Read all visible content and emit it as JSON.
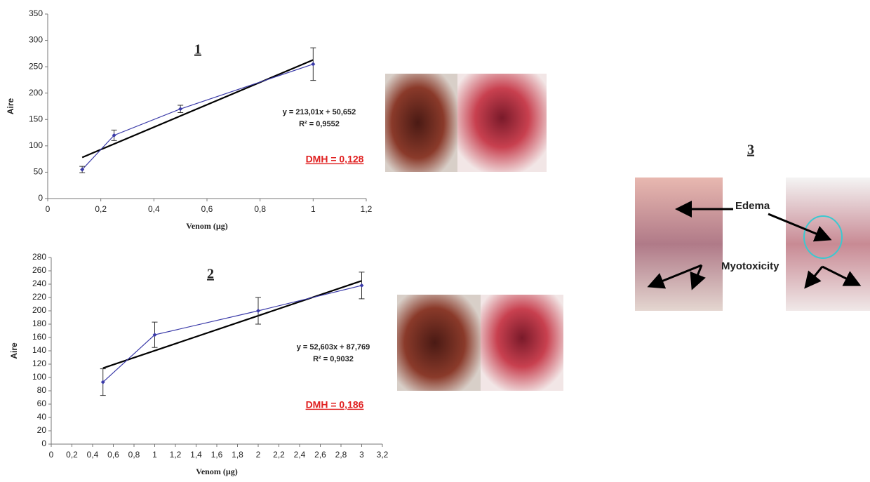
{
  "chart_data": [
    {
      "type": "line",
      "panel_label": "1",
      "xlabel": "Venom (µg)",
      "ylabel": "Aire",
      "x": [
        0.13,
        0.25,
        0.5,
        1
      ],
      "series": [
        {
          "color": "#3a3aa8",
          "values": [
            55,
            120,
            170,
            255
          ],
          "errors": [
            6,
            10,
            7,
            31
          ]
        }
      ],
      "trendline": {
        "color": "#000000",
        "x": [
          0.13,
          1
        ],
        "values": [
          78,
          263
        ]
      },
      "equation": "y = 213,01x + 50,652",
      "r_squared": "R² = 0,9552",
      "dmh": "DMH = 0,128",
      "xlim": [
        0,
        1.2
      ],
      "ylim": [
        0,
        350
      ],
      "xticks": [
        0,
        {
          "value": 0.2,
          "label": "0,2"
        },
        {
          "value": 0.4,
          "label": "0,4"
        },
        {
          "value": 0.6,
          "label": "0,6"
        },
        {
          "value": 0.8,
          "label": "0,8"
        },
        1,
        {
          "value": 1.2,
          "label": "1,2"
        }
      ],
      "yticks": [
        0,
        50,
        100,
        150,
        200,
        250,
        300,
        350
      ]
    },
    {
      "type": "line",
      "panel_label": "2",
      "xlabel": "Venom (µg)",
      "ylabel": "Aire",
      "x": [
        0.5,
        1,
        2,
        3
      ],
      "series": [
        {
          "color": "#3a3aa8",
          "values": [
            93,
            164,
            200,
            238
          ],
          "errors": [
            20,
            19,
            20,
            20
          ]
        }
      ],
      "trendline": {
        "color": "#000000",
        "x": [
          0.5,
          3
        ],
        "values": [
          114,
          245
        ]
      },
      "equation": "y = 52,603x + 87,769",
      "r_squared": "R² = 0,9032",
      "dmh": "DMH = 0,186",
      "xlim": [
        0,
        3.2
      ],
      "ylim": [
        0,
        280
      ],
      "xticks": [
        0,
        {
          "value": 0.2,
          "label": "0,2"
        },
        {
          "value": 0.4,
          "label": "0,4"
        },
        {
          "value": 0.6,
          "label": "0,6"
        },
        {
          "value": 0.8,
          "label": "0,8"
        },
        1,
        {
          "value": 1.2,
          "label": "1,2"
        },
        {
          "value": 1.4,
          "label": "1,4"
        },
        {
          "value": 1.6,
          "label": "1,6"
        },
        {
          "value": 1.8,
          "label": "1,8"
        },
        2,
        {
          "value": 2.2,
          "label": "2,2"
        },
        {
          "value": 2.4,
          "label": "2,4"
        },
        {
          "value": 2.6,
          "label": "2,6"
        },
        {
          "value": 2.8,
          "label": "2,8"
        },
        3,
        {
          "value": 3.2,
          "label": "3,2"
        }
      ],
      "yticks": [
        0,
        20,
        40,
        60,
        80,
        100,
        120,
        140,
        160,
        180,
        200,
        220,
        240,
        260,
        280
      ]
    }
  ],
  "panel_3": {
    "label": "3",
    "annotations": [
      "Edema",
      "Myotoxicity"
    ]
  }
}
